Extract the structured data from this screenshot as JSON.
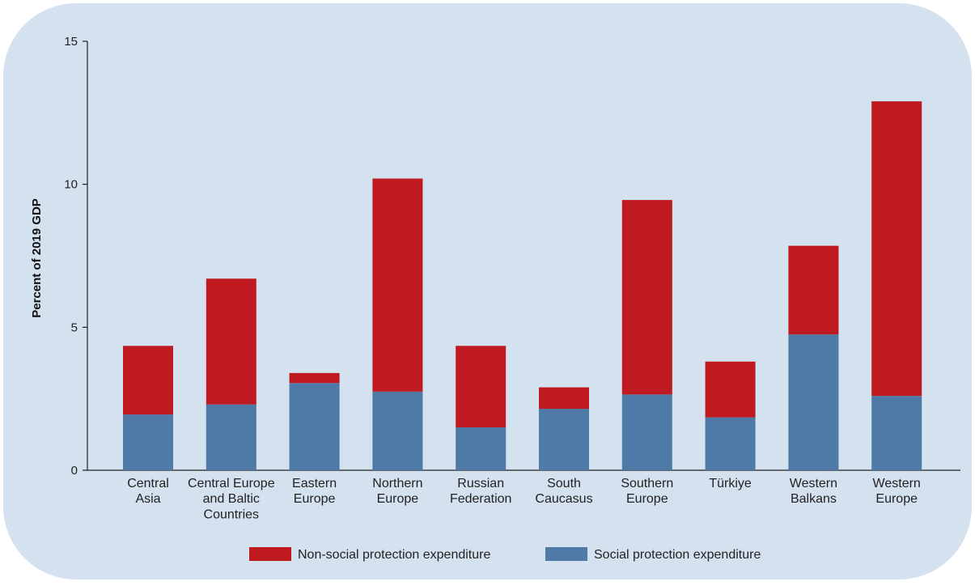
{
  "chart_data": {
    "type": "bar",
    "stacked": true,
    "ylabel": "Percent of 2019 GDP",
    "ylim": [
      0,
      15
    ],
    "yticks": [
      0,
      5,
      10,
      15
    ],
    "categories": [
      [
        "Central",
        "Asia"
      ],
      [
        "Central Europe",
        "and Baltic",
        "Countries"
      ],
      [
        "Eastern",
        "Europe"
      ],
      [
        "Northern",
        "Europe"
      ],
      [
        "Russian",
        "Federation"
      ],
      [
        "South",
        "Caucasus"
      ],
      [
        "Southern",
        "Europe"
      ],
      [
        "Türkiye"
      ],
      [
        "Western",
        "Balkans"
      ],
      [
        "Western",
        "Europe"
      ]
    ],
    "series": [
      {
        "name": "Social protection expenditure",
        "color": "#4f7aa8",
        "values": [
          1.95,
          2.3,
          3.05,
          2.75,
          1.5,
          2.15,
          2.65,
          1.85,
          4.75,
          2.6
        ]
      },
      {
        "name": "Non-social protection expenditure",
        "color": "#bf1a20",
        "values": [
          2.4,
          4.4,
          0.35,
          7.45,
          2.85,
          0.75,
          6.8,
          1.95,
          3.1,
          10.3
        ]
      }
    ],
    "legend": {
      "placement": "bottom",
      "order": [
        "Non-social protection expenditure",
        "Social protection expenditure"
      ]
    },
    "grid": false
  }
}
